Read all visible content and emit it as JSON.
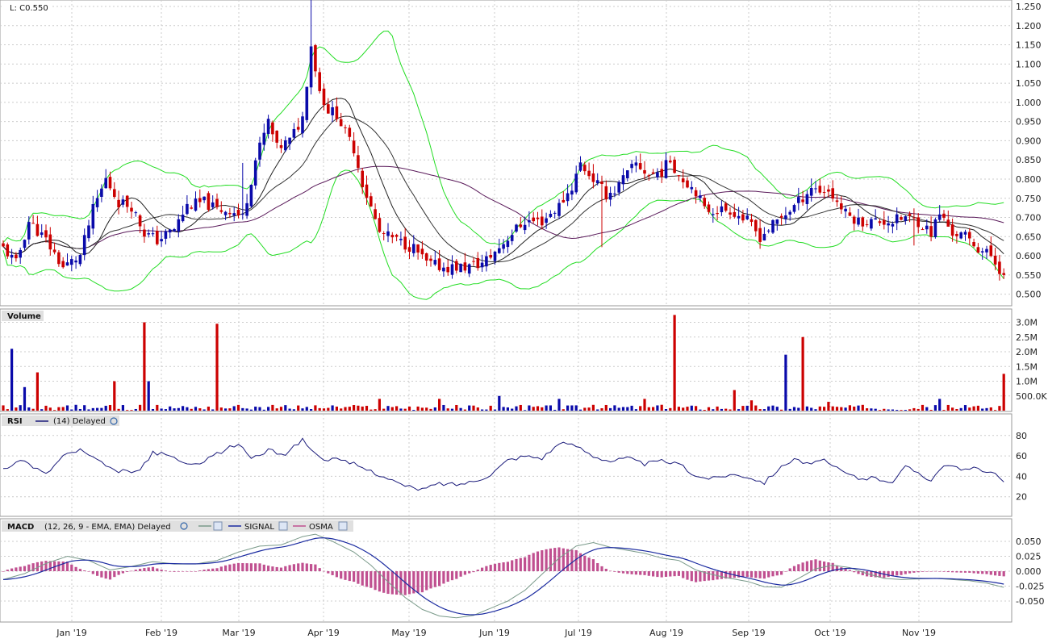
{
  "title": "L: C0.550",
  "colors": {
    "up": "#0a0aaa",
    "down": "#cc0000",
    "flat": "#000000",
    "band": "#22dd22",
    "ma_fast": "#222222",
    "ma_mid": "#333333",
    "ma_slow": "#5a1a5a",
    "rsi": "#1a1a7a",
    "macd": "#7a9a8a",
    "signal": "#1a2aa0",
    "osma": "#c05090",
    "grid": "#cccccc",
    "frame": "#999999"
  },
  "price_panel": {
    "axis_labels": [
      "1.250",
      "1.200",
      "1.150",
      "1.100",
      "1.050",
      "1.000",
      "0.950",
      "0.900",
      "0.850",
      "0.800",
      "0.750",
      "0.700",
      "0.650",
      "0.600",
      "0.550",
      "0.500"
    ]
  },
  "volume_panel": {
    "label": "Volume",
    "axis_labels": [
      "3.0M",
      "2.5M",
      "2.0M",
      "1.5M",
      "1.0M",
      "500.0K"
    ]
  },
  "rsi_panel": {
    "label": "RSI",
    "params": "(14) Delayed",
    "axis_labels": [
      "80",
      "60",
      "40",
      "20"
    ]
  },
  "macd_panel": {
    "label": "MACD",
    "params": "(12, 26, 9 - EMA, EMA) Delayed",
    "signal_label": "SIGNAL",
    "osma_label": "OSMA",
    "axis_labels": [
      "0.050",
      "0.025",
      "0.000",
      "-0.025",
      "-0.050"
    ]
  },
  "x_axis": {
    "labels": [
      "Jan '19",
      "Feb '19",
      "Mar '19",
      "Apr '19",
      "May '19",
      "Jun '19",
      "Jul '19",
      "Aug '19",
      "Sep '19",
      "Oct '19",
      "Nov '19"
    ]
  },
  "chart_data": {
    "type": "candlestick",
    "instrument": "L",
    "last_close": 0.55,
    "price_range": [
      0.48,
      1.25
    ],
    "price_keypoints": [
      [
        0,
        0.62
      ],
      [
        3,
        0.58
      ],
      [
        6,
        0.69
      ],
      [
        10,
        0.64
      ],
      [
        14,
        0.57
      ],
      [
        18,
        0.6
      ],
      [
        21,
        0.72
      ],
      [
        24,
        0.8
      ],
      [
        27,
        0.74
      ],
      [
        30,
        0.73
      ],
      [
        33,
        0.66
      ],
      [
        36,
        0.64
      ],
      [
        40,
        0.67
      ],
      [
        43,
        0.73
      ],
      [
        47,
        0.74
      ],
      [
        50,
        0.72
      ],
      [
        53,
        0.72
      ],
      [
        56,
        0.7
      ],
      [
        59,
        0.85
      ],
      [
        62,
        0.95
      ],
      [
        64,
        0.88
      ],
      [
        67,
        0.9
      ],
      [
        70,
        0.96
      ],
      [
        72,
        1.15
      ],
      [
        74,
        1.03
      ],
      [
        76,
        0.98
      ],
      [
        78,
        0.97
      ],
      [
        80,
        0.92
      ],
      [
        82,
        0.88
      ],
      [
        84,
        0.79
      ],
      [
        88,
        0.66
      ],
      [
        92,
        0.64
      ],
      [
        96,
        0.62
      ],
      [
        99,
        0.58
      ],
      [
        103,
        0.57
      ],
      [
        108,
        0.57
      ],
      [
        112,
        0.58
      ],
      [
        115,
        0.61
      ],
      [
        119,
        0.66
      ],
      [
        122,
        0.69
      ],
      [
        126,
        0.69
      ],
      [
        130,
        0.73
      ],
      [
        133,
        0.78
      ],
      [
        135,
        0.84
      ],
      [
        138,
        0.8
      ],
      [
        141,
        0.76
      ],
      [
        143,
        0.77
      ],
      [
        145,
        0.8
      ],
      [
        148,
        0.84
      ],
      [
        151,
        0.81
      ],
      [
        154,
        0.82
      ],
      [
        156,
        0.85
      ],
      [
        158,
        0.81
      ],
      [
        160,
        0.79
      ],
      [
        162,
        0.77
      ],
      [
        164,
        0.72
      ],
      [
        167,
        0.72
      ],
      [
        170,
        0.72
      ],
      [
        174,
        0.69
      ],
      [
        177,
        0.65
      ],
      [
        180,
        0.68
      ],
      [
        183,
        0.71
      ],
      [
        186,
        0.74
      ],
      [
        189,
        0.78
      ],
      [
        191,
        0.77
      ],
      [
        193,
        0.77
      ],
      [
        195,
        0.74
      ],
      [
        197,
        0.71
      ],
      [
        200,
        0.69
      ],
      [
        204,
        0.69
      ],
      [
        208,
        0.69
      ],
      [
        211,
        0.7
      ],
      [
        214,
        0.69
      ],
      [
        217,
        0.66
      ],
      [
        219,
        0.71
      ],
      [
        222,
        0.66
      ],
      [
        225,
        0.65
      ],
      [
        228,
        0.62
      ],
      [
        231,
        0.6
      ],
      [
        234,
        0.55
      ]
    ],
    "volume_keypoints": [
      [
        2,
        2.1
      ],
      [
        5,
        0.8
      ],
      [
        8,
        1.3
      ],
      [
        26,
        1.0
      ],
      [
        33,
        3.0
      ],
      [
        34,
        1.0
      ],
      [
        50,
        2.95
      ],
      [
        88,
        0.4
      ],
      [
        102,
        0.4
      ],
      [
        116,
        0.5
      ],
      [
        130,
        0.4
      ],
      [
        150,
        0.4
      ],
      [
        157,
        3.25
      ],
      [
        171,
        0.7
      ],
      [
        175,
        0.35
      ],
      [
        183,
        1.9
      ],
      [
        187,
        2.5
      ],
      [
        193,
        0.3
      ],
      [
        219,
        0.4
      ],
      [
        234,
        1.25
      ]
    ],
    "rsi_keypoints": [
      [
        0,
        48
      ],
      [
        5,
        55
      ],
      [
        10,
        42
      ],
      [
        14,
        60
      ],
      [
        18,
        66
      ],
      [
        22,
        55
      ],
      [
        26,
        45
      ],
      [
        32,
        45
      ],
      [
        35,
        64
      ],
      [
        40,
        58
      ],
      [
        44,
        50
      ],
      [
        50,
        62
      ],
      [
        55,
        72
      ],
      [
        58,
        58
      ],
      [
        62,
        65
      ],
      [
        66,
        62
      ],
      [
        70,
        76
      ],
      [
        74,
        58
      ],
      [
        78,
        56
      ],
      [
        82,
        52
      ],
      [
        86,
        45
      ],
      [
        90,
        38
      ],
      [
        94,
        30
      ],
      [
        98,
        27
      ],
      [
        102,
        33
      ],
      [
        106,
        32
      ],
      [
        110,
        35
      ],
      [
        114,
        42
      ],
      [
        118,
        56
      ],
      [
        122,
        60
      ],
      [
        126,
        58
      ],
      [
        130,
        72
      ],
      [
        134,
        70
      ],
      [
        138,
        60
      ],
      [
        142,
        55
      ],
      [
        146,
        58
      ],
      [
        150,
        52
      ],
      [
        154,
        55
      ],
      [
        158,
        52
      ],
      [
        162,
        40
      ],
      [
        166,
        38
      ],
      [
        170,
        42
      ],
      [
        174,
        40
      ],
      [
        178,
        34
      ],
      [
        181,
        46
      ],
      [
        185,
        58
      ],
      [
        188,
        52
      ],
      [
        192,
        55
      ],
      [
        196,
        45
      ],
      [
        200,
        38
      ],
      [
        204,
        38
      ],
      [
        208,
        35
      ],
      [
        211,
        49
      ],
      [
        214,
        44
      ],
      [
        217,
        36
      ],
      [
        220,
        52
      ],
      [
        224,
        46
      ],
      [
        228,
        48
      ],
      [
        231,
        44
      ],
      [
        234,
        35
      ]
    ],
    "macd_keypoints": [
      [
        0,
        -0.014
      ],
      [
        5,
        -0.004
      ],
      [
        10,
        0.013
      ],
      [
        15,
        0.025
      ],
      [
        20,
        0.018
      ],
      [
        25,
        0.002
      ],
      [
        30,
        0.008
      ],
      [
        35,
        0.016
      ],
      [
        40,
        0.012
      ],
      [
        45,
        0.012
      ],
      [
        50,
        0.018
      ],
      [
        55,
        0.032
      ],
      [
        60,
        0.042
      ],
      [
        65,
        0.044
      ],
      [
        70,
        0.058
      ],
      [
        73,
        0.062
      ],
      [
        77,
        0.05
      ],
      [
        82,
        0.032
      ],
      [
        86,
        0.01
      ],
      [
        90,
        -0.018
      ],
      [
        94,
        -0.044
      ],
      [
        98,
        -0.064
      ],
      [
        102,
        -0.075
      ],
      [
        106,
        -0.078
      ],
      [
        110,
        -0.074
      ],
      [
        114,
        -0.062
      ],
      [
        118,
        -0.05
      ],
      [
        122,
        -0.032
      ],
      [
        126,
        -0.005
      ],
      [
        130,
        0.022
      ],
      [
        134,
        0.042
      ],
      [
        138,
        0.048
      ],
      [
        142,
        0.04
      ],
      [
        146,
        0.035
      ],
      [
        150,
        0.03
      ],
      [
        154,
        0.022
      ],
      [
        158,
        0.018
      ],
      [
        162,
        0.002
      ],
      [
        166,
        -0.006
      ],
      [
        170,
        -0.012
      ],
      [
        174,
        -0.017
      ],
      [
        178,
        -0.026
      ],
      [
        182,
        -0.027
      ],
      [
        186,
        -0.012
      ],
      [
        190,
        0.004
      ],
      [
        194,
        0.01
      ],
      [
        198,
        0.006
      ],
      [
        202,
        -0.004
      ],
      [
        206,
        -0.012
      ],
      [
        210,
        -0.014
      ],
      [
        214,
        -0.013
      ],
      [
        218,
        -0.012
      ],
      [
        222,
        -0.014
      ],
      [
        226,
        -0.016
      ],
      [
        230,
        -0.02
      ],
      [
        234,
        -0.027
      ]
    ]
  }
}
